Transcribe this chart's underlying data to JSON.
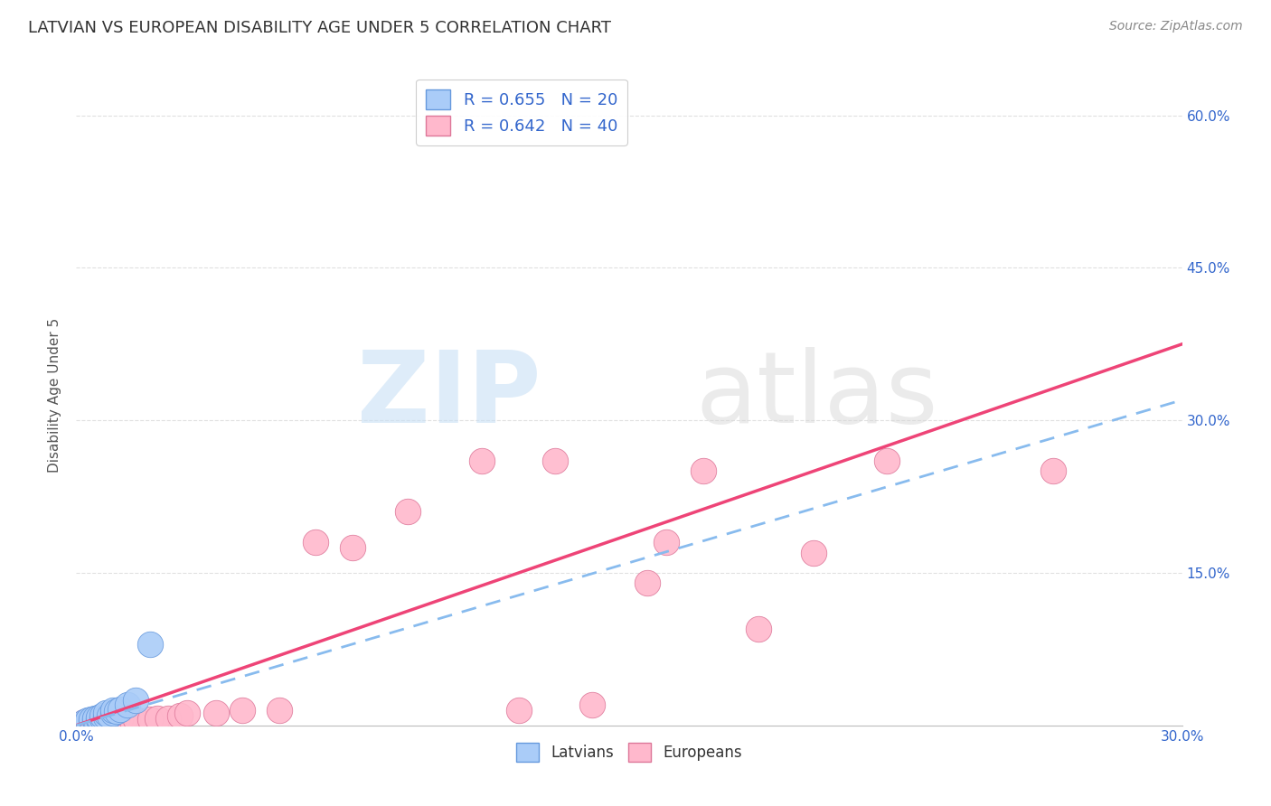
{
  "title": "LATVIAN VS EUROPEAN DISABILITY AGE UNDER 5 CORRELATION CHART",
  "source": "Source: ZipAtlas.com",
  "ylabel": "Disability Age Under 5",
  "xlim": [
    0.0,
    0.3
  ],
  "ylim": [
    0.0,
    0.65
  ],
  "x_tick_labels": [
    "0.0%",
    "30.0%"
  ],
  "y_tick_labels": [
    "15.0%",
    "30.0%",
    "45.0%",
    "60.0%"
  ],
  "y_tick_positions": [
    0.15,
    0.3,
    0.45,
    0.6
  ],
  "latvians_R": "0.655",
  "latvians_N": "20",
  "europeans_R": "0.642",
  "europeans_N": "40",
  "latvians_color": "#aaccf8",
  "latvians_edge_color": "#6699dd",
  "europeans_color": "#ffb8cc",
  "europeans_edge_color": "#dd7799",
  "trend_latvians_color": "#88bbee",
  "trend_europeans_color": "#ee4477",
  "background_color": "#ffffff",
  "grid_color": "#e0e0e0",
  "latvians_x": [
    0.002,
    0.003,
    0.004,
    0.004,
    0.005,
    0.005,
    0.006,
    0.006,
    0.007,
    0.007,
    0.008,
    0.008,
    0.009,
    0.01,
    0.01,
    0.011,
    0.012,
    0.014,
    0.016,
    0.02
  ],
  "latvians_y": [
    0.003,
    0.005,
    0.004,
    0.006,
    0.005,
    0.007,
    0.006,
    0.008,
    0.007,
    0.01,
    0.009,
    0.012,
    0.01,
    0.012,
    0.015,
    0.014,
    0.016,
    0.02,
    0.025,
    0.08
  ],
  "europeans_x": [
    0.002,
    0.003,
    0.004,
    0.005,
    0.006,
    0.007,
    0.007,
    0.008,
    0.008,
    0.009,
    0.01,
    0.01,
    0.011,
    0.012,
    0.013,
    0.014,
    0.015,
    0.016,
    0.02,
    0.022,
    0.025,
    0.028,
    0.03,
    0.038,
    0.045,
    0.055,
    0.065,
    0.075,
    0.09,
    0.11,
    0.12,
    0.13,
    0.14,
    0.155,
    0.16,
    0.17,
    0.185,
    0.2,
    0.22,
    0.265
  ],
  "europeans_y": [
    0.003,
    0.004,
    0.003,
    0.005,
    0.004,
    0.004,
    0.005,
    0.004,
    0.006,
    0.005,
    0.005,
    0.006,
    0.005,
    0.006,
    0.005,
    0.006,
    0.005,
    0.006,
    0.006,
    0.007,
    0.007,
    0.01,
    0.012,
    0.012,
    0.015,
    0.015,
    0.18,
    0.175,
    0.21,
    0.26,
    0.015,
    0.26,
    0.02,
    0.14,
    0.18,
    0.25,
    0.095,
    0.17,
    0.26,
    0.25
  ],
  "eur_trend_x0": 0.0,
  "eur_trend_y0": 0.0,
  "eur_trend_x1": 0.3,
  "eur_trend_y1": 0.375,
  "lat_trend_x0": 0.0,
  "lat_trend_y0": 0.0,
  "lat_trend_x1": 0.3,
  "lat_trend_y1": 0.32
}
